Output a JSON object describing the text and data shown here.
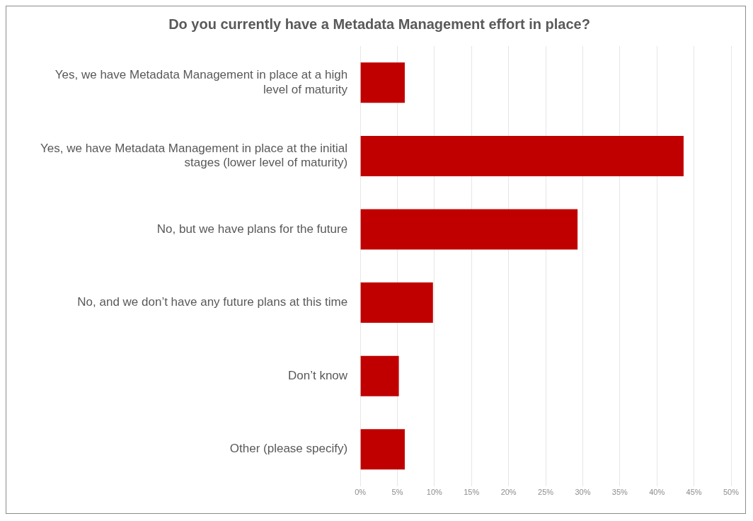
{
  "chart_data": {
    "type": "bar",
    "orientation": "horizontal",
    "title": "Do you currently have a Metadata Management effort in place?",
    "categories": [
      "Yes, we have Metadata Management in place at a high level of maturity",
      "Yes, we have Metadata Management in place at the initial stages (lower level of maturity)",
      "No, but we have plans for the future",
      "No, and we don’t have any future plans at this time",
      "Don’t know",
      "Other (please specify)"
    ],
    "values": [
      6.0,
      43.6,
      29.3,
      9.8,
      5.2,
      6.0
    ],
    "color": "#c00000",
    "xlim": [
      0,
      50
    ],
    "xticks": [
      {
        "value": 0,
        "label": "0%"
      },
      {
        "value": 5,
        "label": "5%"
      },
      {
        "value": 10,
        "label": "10%"
      },
      {
        "value": 15,
        "label": "15%"
      },
      {
        "value": 20,
        "label": "20%"
      },
      {
        "value": 25,
        "label": "25%"
      },
      {
        "value": 30,
        "label": "30%"
      },
      {
        "value": 35,
        "label": "35%"
      },
      {
        "value": 40,
        "label": "40%"
      },
      {
        "value": 45,
        "label": "45%"
      },
      {
        "value": 50,
        "label": "50%"
      }
    ],
    "grid": "x",
    "legend": false
  }
}
